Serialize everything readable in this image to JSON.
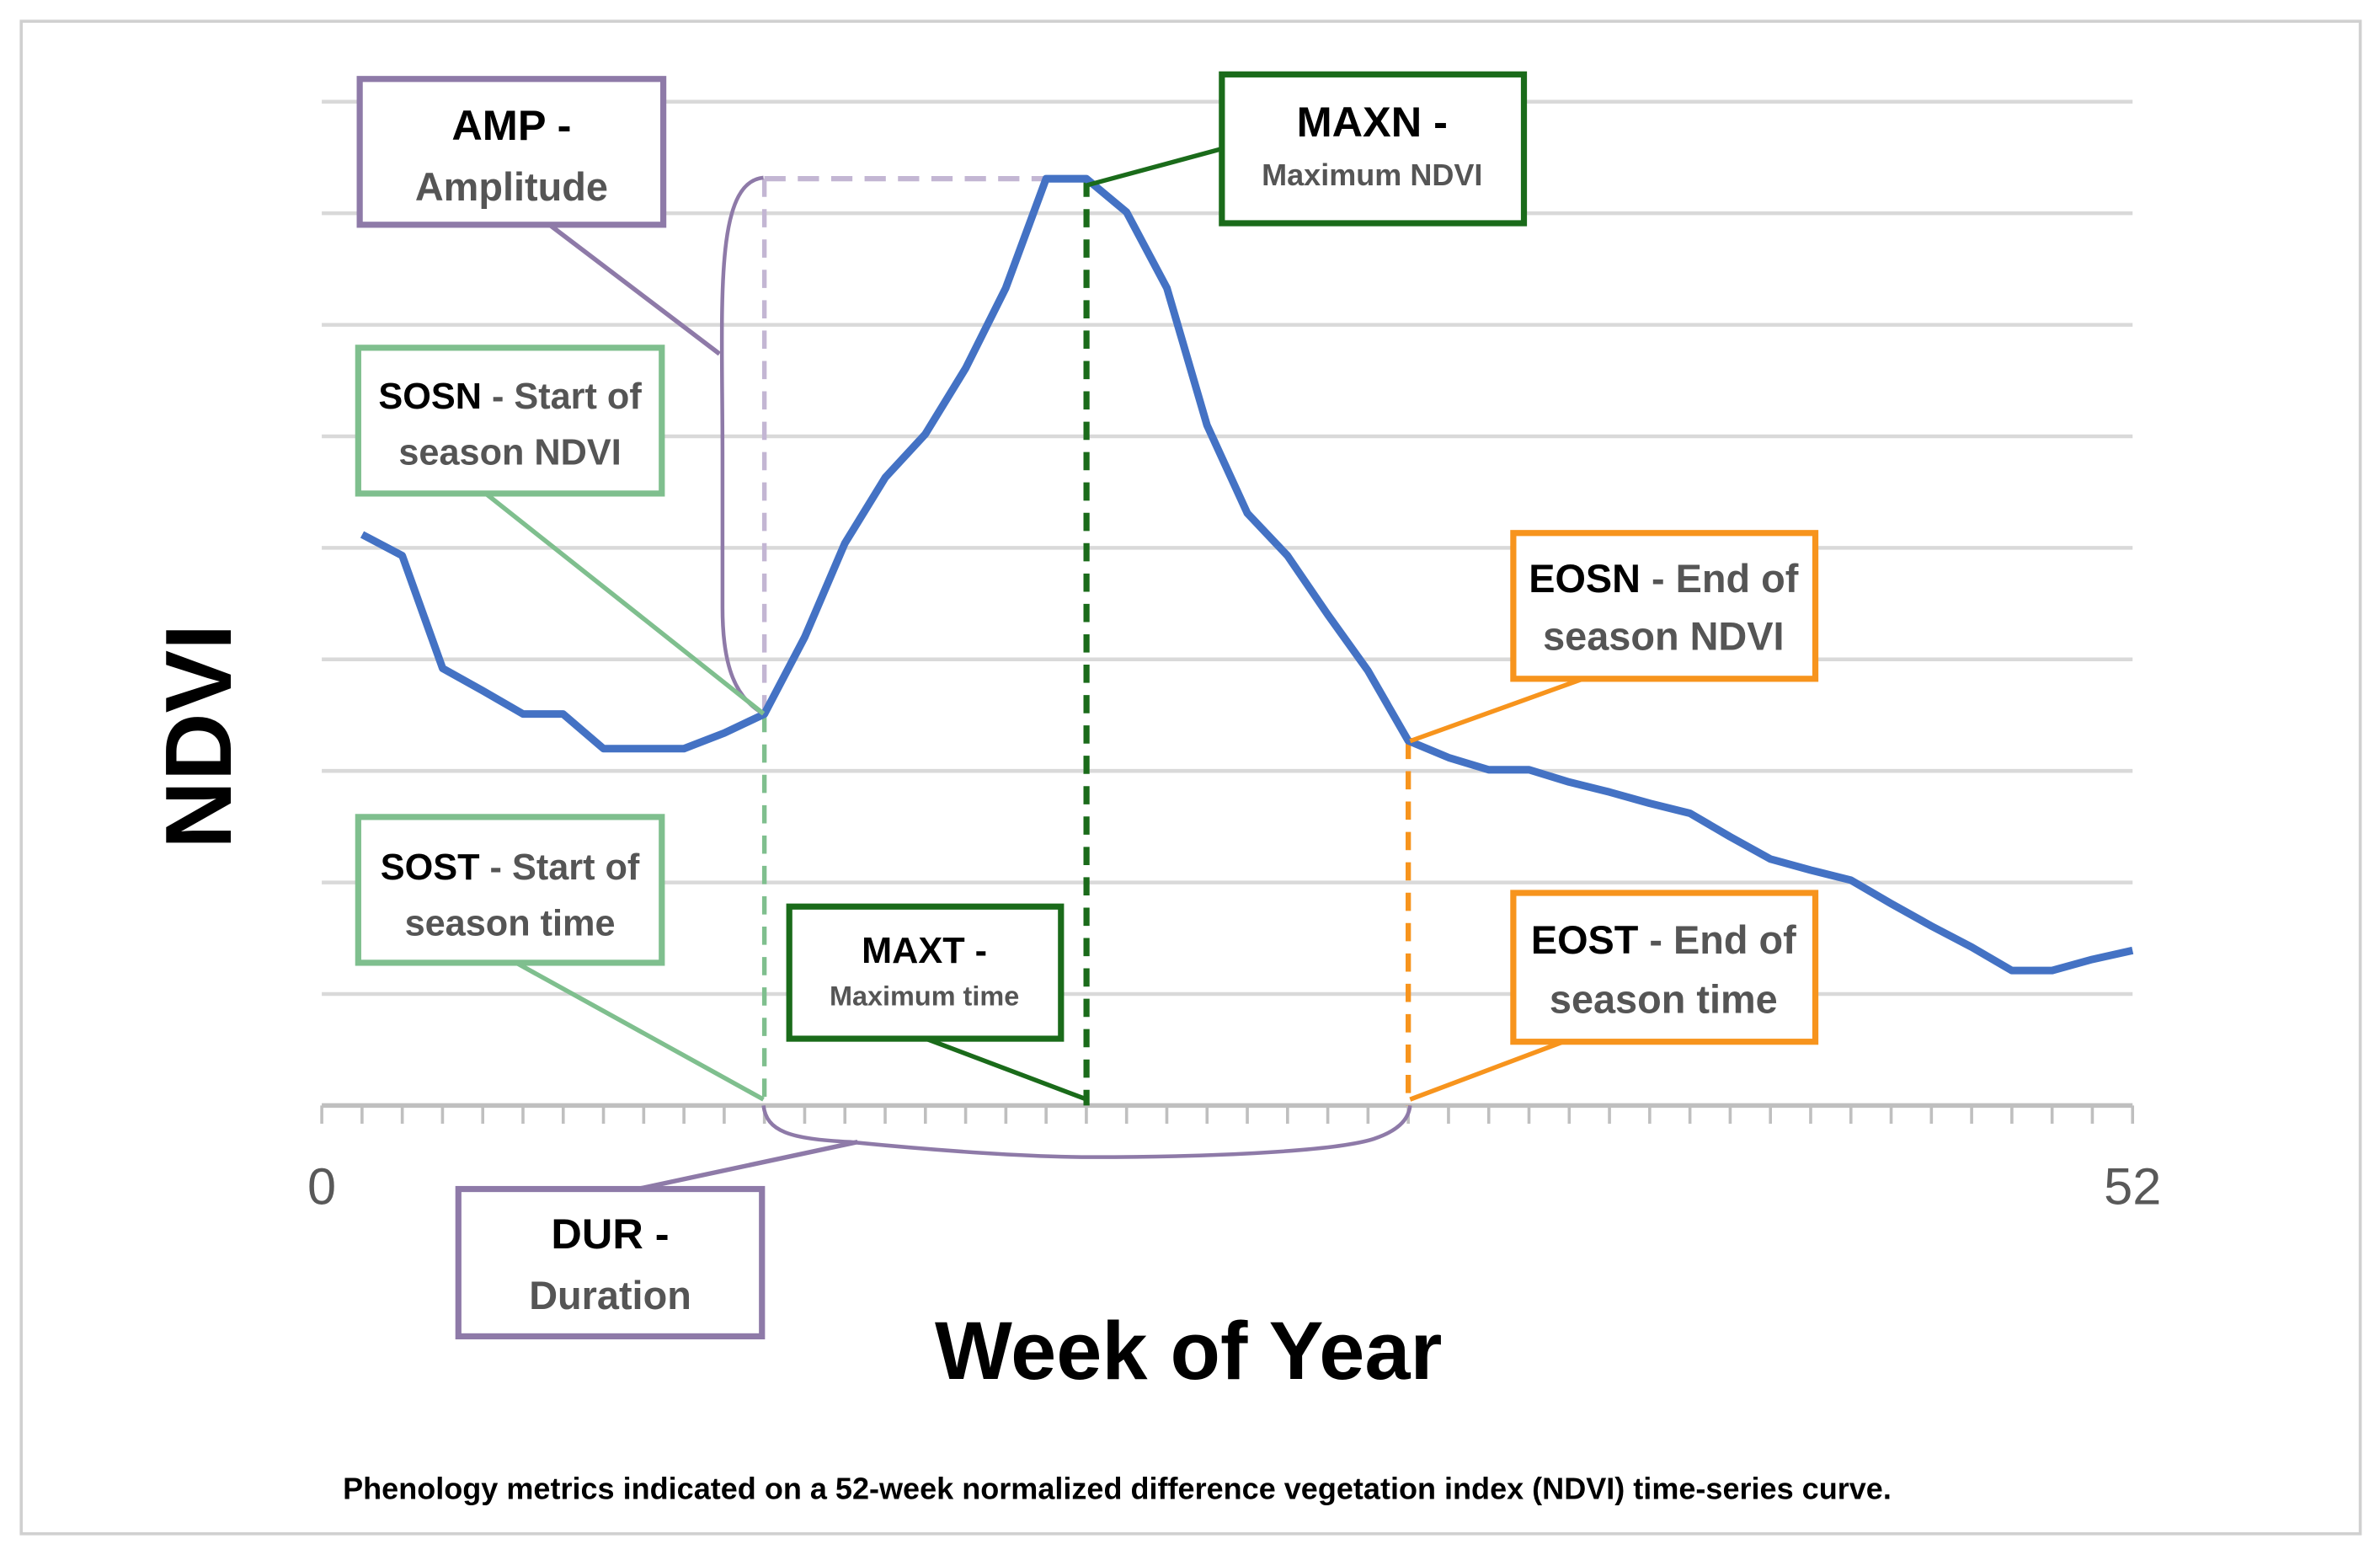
{
  "chart_data": {
    "type": "line",
    "title": "",
    "xlabel": "Week of Year",
    "ylabel": "NDVI",
    "xlim": [
      0,
      52
    ],
    "ylim": [
      0,
      9
    ],
    "y_units": "gridline intervals (unlabeled axis)",
    "x_tick_labels": [
      "0",
      "52"
    ],
    "grid": true,
    "legend": "none",
    "series": [
      {
        "name": "NDVI",
        "color": "#4472c4",
        "x": [
          1.16,
          2.31,
          3.47,
          4.62,
          5.78,
          6.93,
          8.09,
          9.24,
          10.4,
          11.56,
          12.71,
          13.87,
          15.02,
          16.18,
          17.33,
          18.49,
          19.64,
          20.8,
          21.96,
          23.11,
          24.27,
          25.42,
          26.58,
          27.73,
          28.89,
          30.04,
          31.2,
          32.36,
          33.51,
          34.67,
          35.82,
          36.98,
          38.13,
          39.29,
          40.44,
          41.6,
          42.76,
          43.91,
          45.07,
          46.22,
          47.38,
          48.53,
          49.69,
          50.84,
          52
        ],
        "y": [
          5.12,
          4.93,
          3.92,
          3.72,
          3.51,
          3.51,
          3.2,
          3.2,
          3.2,
          3.34,
          3.51,
          4.2,
          5.04,
          5.63,
          6.02,
          6.61,
          7.33,
          8.31,
          8.31,
          8.01,
          7.33,
          6.1,
          5.31,
          4.93,
          4.4,
          3.9,
          3.27,
          3.12,
          3.01,
          3.01,
          2.9,
          2.81,
          2.71,
          2.62,
          2.41,
          2.21,
          2.11,
          2.02,
          1.81,
          1.61,
          1.42,
          1.21,
          1.21,
          1.31,
          1.39
        ]
      }
    ],
    "metrics": {
      "sos": {
        "week": 12.71,
        "ndvi": 3.51
      },
      "max": {
        "week": 21.96,
        "ndvi": 8.31
      },
      "eos": {
        "week": 31.2,
        "ndvi": 3.27
      }
    },
    "annotations": {
      "amp": {
        "code": "AMP -",
        "line2": "Amplitude",
        "color": "#8e7aa8"
      },
      "maxn": {
        "code": "MAXN -",
        "line2": "Maximum NDVI",
        "color": "#1a6b1a"
      },
      "sosn": {
        "code": "SOSN",
        "line1": " - Start of",
        "line2": "season NDVI",
        "color": "#7fbf8e"
      },
      "sost": {
        "code": "SOST",
        "line1": " - Start of",
        "line2": "season time",
        "color": "#7fbf8e"
      },
      "maxt": {
        "code": "MAXT -",
        "line2": "Maximum time",
        "color": "#1a6b1a"
      },
      "eosn": {
        "code": "EOSN",
        "line1": " - End of",
        "line2": "season NDVI",
        "color": "#f7941d"
      },
      "eost": {
        "code": "EOST",
        "line1": " - End of",
        "line2": "season time",
        "color": "#f7941d"
      },
      "dur": {
        "code": "DUR -",
        "line2": "Duration",
        "color": "#8e7aa8"
      }
    },
    "caption": "Phenology metrics indicated on a 52-week normalized difference vegetation index (NDVI) time-series curve."
  }
}
